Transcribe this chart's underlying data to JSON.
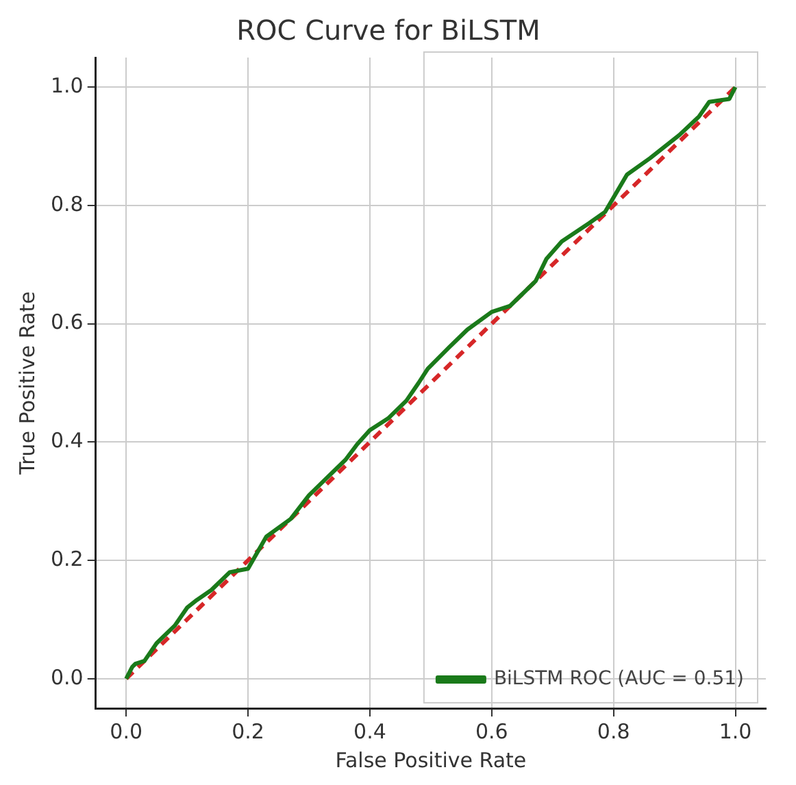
{
  "chart_data": {
    "type": "line",
    "title": "ROC Curve for BiLSTM",
    "xlabel": "False Positive Rate",
    "ylabel": "True Positive Rate",
    "xlim": [
      -0.05,
      1.05
    ],
    "ylim": [
      -0.05,
      1.05
    ],
    "xticks": [
      {
        "value": 0,
        "label": "0.0"
      },
      {
        "value": 0.2,
        "label": "0.2"
      },
      {
        "value": 0.4,
        "label": "0.4"
      },
      {
        "value": 0.6,
        "label": "0.6"
      },
      {
        "value": 0.8,
        "label": "0.8"
      },
      {
        "value": 1,
        "label": "1.0"
      }
    ],
    "yticks": [
      {
        "value": 0,
        "label": "0.0"
      },
      {
        "value": 0.2,
        "label": "0.2"
      },
      {
        "value": 0.4,
        "label": "0.4"
      },
      {
        "value": 0.6,
        "label": "0.6"
      },
      {
        "value": 0.8,
        "label": "0.8"
      },
      {
        "value": 1,
        "label": "1.0"
      }
    ],
    "grid": true,
    "legend": "bottom right",
    "marker": "none",
    "series": [
      {
        "name": "BiLSTM ROC (AUC = 0.51)",
        "color": "#1a7a1a",
        "line_style": "solid",
        "x": [
          0,
          0.01,
          0.015,
          0.03,
          0.05,
          0.08,
          0.1,
          0.116,
          0.14,
          0.17,
          0.2,
          0.23,
          0.27,
          0.3,
          0.33,
          0.36,
          0.379,
          0.4,
          0.43,
          0.46,
          0.48,
          0.495,
          0.53,
          0.56,
          0.6,
          0.63,
          0.672,
          0.69,
          0.715,
          0.76,
          0.786,
          0.822,
          0.86,
          0.908,
          0.94,
          0.957,
          0.99,
          1
        ],
        "values": [
          0,
          0.02,
          0.025,
          0.03,
          0.06,
          0.09,
          0.12,
          0.133,
          0.15,
          0.18,
          0.186,
          0.24,
          0.27,
          0.31,
          0.34,
          0.37,
          0.396,
          0.42,
          0.44,
          0.47,
          0.5,
          0.524,
          0.56,
          0.59,
          0.62,
          0.63,
          0.672,
          0.71,
          0.739,
          0.77,
          0.789,
          0.852,
          0.88,
          0.919,
          0.95,
          0.975,
          0.98,
          1
        ]
      },
      {
        "type": "line",
        "color": "#d62728",
        "line_style": "dashed",
        "x": [
          0,
          1
        ],
        "values": [
          0,
          1
        ]
      }
    ]
  }
}
